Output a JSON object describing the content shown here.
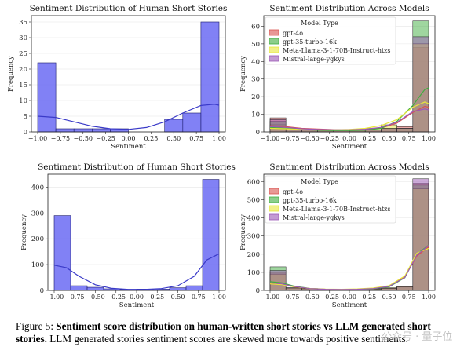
{
  "figure": {
    "caption_label": "Figure 5:",
    "caption_bold": "Sentiment score distribution on human-written short stories vs LLM generated short stories.",
    "caption_rest": "LLM generated stories sentiment scores are skewed more towards positive sentiments.",
    "watermark": "公众号 · 量子位"
  },
  "chart_data": [
    {
      "type": "bar",
      "title": "Sentiment Distribution of Human Short Stories",
      "xlabel": "Sentiment",
      "ylabel": "Frequency",
      "xlim": [
        -1.0,
        1.0
      ],
      "ylim": [
        0,
        37
      ],
      "xticks": [
        "−1.00",
        "−0.75",
        "−0.50",
        "−0.25",
        "0.00",
        "0.25",
        "0.50",
        "0.75",
        "1.00"
      ],
      "yticks": [
        0,
        5,
        10,
        15,
        20,
        25,
        30,
        35
      ],
      "bin_edges": [
        -1.0,
        -0.8,
        -0.6,
        -0.4,
        -0.2,
        0.0,
        0.2,
        0.4,
        0.6,
        0.8,
        1.0
      ],
      "values": [
        22,
        1,
        1,
        1,
        1,
        0,
        0,
        4,
        6,
        35
      ],
      "kde": [
        [
          -1.0,
          5.0
        ],
        [
          -0.8,
          4.6
        ],
        [
          -0.6,
          3.2
        ],
        [
          -0.4,
          1.8
        ],
        [
          -0.2,
          1.0
        ],
        [
          0.0,
          0.8
        ],
        [
          0.2,
          1.4
        ],
        [
          0.4,
          3.2
        ],
        [
          0.6,
          6.0
        ],
        [
          0.8,
          8.4
        ],
        [
          0.95,
          8.8
        ],
        [
          1.0,
          8.5
        ]
      ],
      "color": "#5d5df2"
    },
    {
      "type": "bar",
      "title": "Sentiment Distribution Across Models",
      "xlabel": "Sentiment",
      "ylabel": "Frequency",
      "xlim": [
        -1.0,
        1.0
      ],
      "ylim": [
        0,
        66
      ],
      "xticks": [
        "−1.00",
        "−0.75",
        "−0.50",
        "−0.25",
        "0.00",
        "0.25",
        "0.50",
        "0.75",
        "1.00"
      ],
      "yticks": [
        0,
        10,
        20,
        30,
        40,
        50,
        60
      ],
      "legend_title": "Model Type",
      "legend_position": "top-right",
      "bin_edges": [
        -1.0,
        -0.8,
        -0.6,
        -0.4,
        -0.2,
        0.0,
        0.2,
        0.4,
        0.6,
        0.8,
        1.0
      ],
      "series": [
        {
          "name": "gpt-4o",
          "color": "#d9534f",
          "values": [
            8,
            2,
            1,
            1,
            1,
            1,
            1,
            2,
            3,
            48
          ],
          "kde": [
            [
              -1.0,
              3.5
            ],
            [
              -0.8,
              3.0
            ],
            [
              -0.6,
              2.0
            ],
            [
              -0.4,
              1.6
            ],
            [
              -0.2,
              1.3
            ],
            [
              0.0,
              1.2
            ],
            [
              0.2,
              1.4
            ],
            [
              0.4,
              2.2
            ],
            [
              0.6,
              5.0
            ],
            [
              0.8,
              11.0
            ],
            [
              0.95,
              14.5
            ],
            [
              1.0,
              14.0
            ]
          ]
        },
        {
          "name": "gpt-35-turbo-16k",
          "color": "#3fae3f",
          "values": [
            6,
            1,
            1,
            1,
            0,
            1,
            1,
            2,
            2,
            63
          ],
          "kde": [
            [
              -1.0,
              2.5
            ],
            [
              -0.8,
              2.0
            ],
            [
              -0.6,
              1.4
            ],
            [
              -0.4,
              1.0
            ],
            [
              -0.2,
              0.8
            ],
            [
              0.0,
              0.8
            ],
            [
              0.2,
              1.0
            ],
            [
              0.4,
              2.0
            ],
            [
              0.6,
              6.0
            ],
            [
              0.8,
              15.0
            ],
            [
              0.95,
              24.0
            ],
            [
              1.0,
              25.0
            ]
          ]
        },
        {
          "name": "Meta-Llama-3-1-70B-Instruct-htzs",
          "color": "#e8e83a",
          "values": [
            4,
            1,
            1,
            1,
            1,
            1,
            2,
            4,
            2,
            50
          ],
          "kde": [
            [
              -1.0,
              2.0
            ],
            [
              -0.8,
              1.8
            ],
            [
              -0.6,
              1.4
            ],
            [
              -0.4,
              1.2
            ],
            [
              -0.2,
              1.2
            ],
            [
              0.0,
              1.4
            ],
            [
              0.2,
              2.0
            ],
            [
              0.4,
              3.6
            ],
            [
              0.6,
              7.0
            ],
            [
              0.8,
              14.0
            ],
            [
              0.95,
              17.0
            ],
            [
              1.0,
              16.0
            ]
          ]
        },
        {
          "name": "Mistral-large-ygkys",
          "color": "#9b59b6",
          "values": [
            7,
            1,
            1,
            1,
            1,
            1,
            1,
            2,
            2,
            54
          ],
          "kde": [
            [
              -1.0,
              3.0
            ],
            [
              -0.8,
              2.6
            ],
            [
              -0.6,
              1.8
            ],
            [
              -0.4,
              1.4
            ],
            [
              -0.2,
              1.2
            ],
            [
              0.0,
              1.2
            ],
            [
              0.2,
              1.5
            ],
            [
              0.4,
              2.6
            ],
            [
              0.6,
              5.5
            ],
            [
              0.8,
              11.5
            ],
            [
              0.95,
              13.0
            ],
            [
              1.0,
              12.5
            ]
          ]
        }
      ]
    },
    {
      "type": "bar",
      "title": "Sentiment Distribution of Human Short Stories",
      "xlabel": "Sentiment",
      "ylabel": "Frequency",
      "xlim": [
        -1.0,
        1.0
      ],
      "ylim": [
        0,
        450
      ],
      "xticks": [
        "−1.00",
        "−0.75",
        "−0.50",
        "−0.25",
        "0.00",
        "0.25",
        "0.50",
        "0.75",
        "1.00"
      ],
      "yticks": [
        0,
        100,
        200,
        300,
        400
      ],
      "bin_edges": [
        -1.0,
        -0.8,
        -0.6,
        -0.4,
        -0.2,
        0.0,
        0.2,
        0.4,
        0.6,
        0.8,
        1.0
      ],
      "values": [
        290,
        18,
        12,
        6,
        4,
        5,
        5,
        10,
        18,
        430
      ],
      "kde": [
        [
          -1.0,
          98
        ],
        [
          -0.85,
          88
        ],
        [
          -0.7,
          55
        ],
        [
          -0.5,
          22
        ],
        [
          -0.3,
          8
        ],
        [
          -0.1,
          4
        ],
        [
          0.1,
          4
        ],
        [
          0.3,
          7
        ],
        [
          0.5,
          18
        ],
        [
          0.7,
          55
        ],
        [
          0.85,
          118
        ],
        [
          1.0,
          142
        ]
      ],
      "color": "#5d5df2"
    },
    {
      "type": "bar",
      "title": "Sentiment Distribution Across Models",
      "xlabel": "Sentiment",
      "ylabel": "Frequency",
      "xlim": [
        -1.0,
        1.0
      ],
      "ylim": [
        0,
        640
      ],
      "xticks": [
        "−1.00",
        "−0.75",
        "−0.50",
        "−0.25",
        "0.00",
        "0.25",
        "0.50",
        "0.75",
        "1.00"
      ],
      "yticks": [
        0,
        100,
        200,
        300,
        400,
        500,
        600
      ],
      "legend_title": "Model Type",
      "legend_position": "top-left",
      "bin_edges": [
        -1.0,
        -0.8,
        -0.6,
        -0.4,
        -0.2,
        0.0,
        0.2,
        0.4,
        0.6,
        0.8,
        1.0
      ],
      "series": [
        {
          "name": "gpt-4o",
          "color": "#d9534f",
          "values": [
            100,
            15,
            10,
            5,
            5,
            5,
            8,
            12,
            20,
            590
          ],
          "kde": [
            [
              -1.0,
              40
            ],
            [
              -0.85,
              34
            ],
            [
              -0.7,
              20
            ],
            [
              -0.5,
              10
            ],
            [
              -0.3,
              6
            ],
            [
              -0.1,
              5
            ],
            [
              0.1,
              6
            ],
            [
              0.3,
              10
            ],
            [
              0.5,
              22
            ],
            [
              0.7,
              75
            ],
            [
              0.85,
              190
            ],
            [
              1.0,
              240
            ]
          ]
        },
        {
          "name": "gpt-35-turbo-16k",
          "color": "#3fae3f",
          "values": [
            130,
            12,
            8,
            5,
            4,
            4,
            6,
            10,
            18,
            580
          ],
          "kde": [
            [
              -1.0,
              48
            ],
            [
              -0.85,
              42
            ],
            [
              -0.7,
              24
            ],
            [
              -0.5,
              11
            ],
            [
              -0.3,
              6
            ],
            [
              -0.1,
              5
            ],
            [
              0.1,
              5
            ],
            [
              0.3,
              9
            ],
            [
              0.5,
              20
            ],
            [
              0.7,
              70
            ],
            [
              0.85,
              200
            ],
            [
              1.0,
              250
            ]
          ]
        },
        {
          "name": "Meta-Llama-3-1-70B-Instruct-htzs",
          "color": "#e8e83a",
          "values": [
            90,
            14,
            10,
            6,
            5,
            6,
            10,
            15,
            22,
            560
          ],
          "kde": [
            [
              -1.0,
              36
            ],
            [
              -0.85,
              32
            ],
            [
              -0.7,
              20
            ],
            [
              -0.5,
              11
            ],
            [
              -0.3,
              7
            ],
            [
              -0.1,
              6
            ],
            [
              0.1,
              8
            ],
            [
              0.3,
              13
            ],
            [
              0.5,
              26
            ],
            [
              0.7,
              80
            ],
            [
              0.85,
              205
            ],
            [
              1.0,
              232
            ]
          ]
        },
        {
          "name": "Mistral-large-ygkys",
          "color": "#9b59b6",
          "values": [
            110,
            13,
            9,
            5,
            4,
            5,
            7,
            12,
            20,
            615
          ],
          "kde": [
            [
              -1.0,
              42
            ],
            [
              -0.85,
              36
            ],
            [
              -0.7,
              22
            ],
            [
              -0.5,
              10
            ],
            [
              -0.3,
              6
            ],
            [
              -0.1,
              5
            ],
            [
              0.1,
              6
            ],
            [
              0.3,
              10
            ],
            [
              0.5,
              22
            ],
            [
              0.7,
              72
            ],
            [
              0.85,
              195
            ],
            [
              1.0,
              248
            ]
          ]
        }
      ]
    }
  ]
}
